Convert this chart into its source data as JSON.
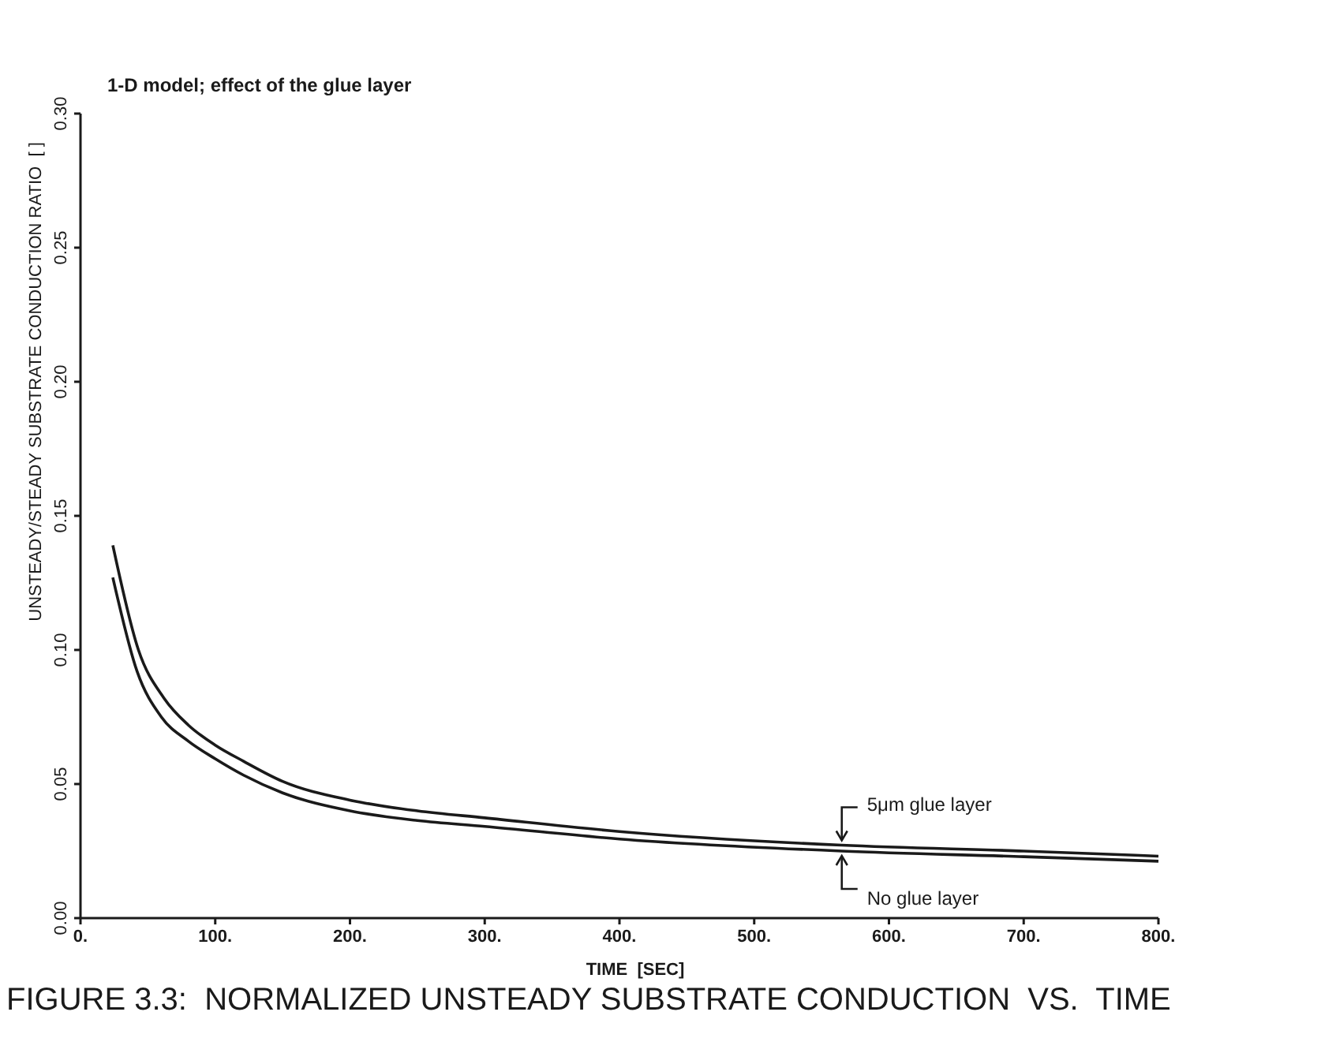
{
  "chart_data": {
    "type": "line",
    "title": "1-D model; effect of the glue layer",
    "xlabel": "TIME  [SEC]",
    "ylabel": "UNSTEADY/STEADY SUBSTRATE CONDUCTION RATIO  [ ]",
    "xlim": [
      0,
      800
    ],
    "ylim": [
      0,
      0.3
    ],
    "xticks": [
      {
        "value": 0,
        "label": "0."
      },
      {
        "value": 100,
        "label": "100."
      },
      {
        "value": 200,
        "label": "200."
      },
      {
        "value": 300,
        "label": "300."
      },
      {
        "value": 400,
        "label": "400."
      },
      {
        "value": 500,
        "label": "500."
      },
      {
        "value": 600,
        "label": "600."
      },
      {
        "value": 700,
        "label": "700."
      },
      {
        "value": 800,
        "label": "800."
      }
    ],
    "yticks": [
      {
        "value": 0,
        "label": "0.00"
      },
      {
        "value": 0.05,
        "label": "0.05"
      },
      {
        "value": 0.1,
        "label": "0.10"
      },
      {
        "value": 0.15,
        "label": "0.15"
      },
      {
        "value": 0.2,
        "label": "0.20"
      },
      {
        "value": 0.25,
        "label": "0.25"
      },
      {
        "value": 0.3,
        "label": "0.30"
      }
    ],
    "marker": "none",
    "line_style": "solid",
    "series": [
      {
        "color": "#1a1a1a",
        "x": [
          24,
          43,
          62,
          80,
          100,
          121,
          150,
          200,
          250,
          300,
          400,
          565,
          700,
          800
        ],
        "values": [
          0.139,
          0.1,
          0.082,
          0.072,
          0.0645,
          0.0585,
          0.051,
          0.044,
          0.04,
          0.0374,
          0.0323,
          0.0272,
          0.025,
          0.0231
        ]
      },
      {
        "color": "#1a1a1a",
        "x": [
          24,
          42,
          60,
          80,
          100,
          121,
          150,
          200,
          250,
          300,
          400,
          565,
          700,
          800
        ],
        "values": [
          0.127,
          0.092,
          0.075,
          0.066,
          0.0594,
          0.0533,
          0.0467,
          0.04,
          0.0364,
          0.0342,
          0.0295,
          0.025,
          0.0229,
          0.0212
        ]
      }
    ],
    "annotations": [
      {
        "text": "5μm glue layer",
        "x": 565,
        "y": 0.0272
      },
      {
        "text": "No glue layer",
        "x": 565,
        "y": 0.025
      },
      "FIGURE 3.3:  NORMALIZED UNSTEADY SUBSTRATE CONDUCTION  VS.  TIME"
    ]
  }
}
